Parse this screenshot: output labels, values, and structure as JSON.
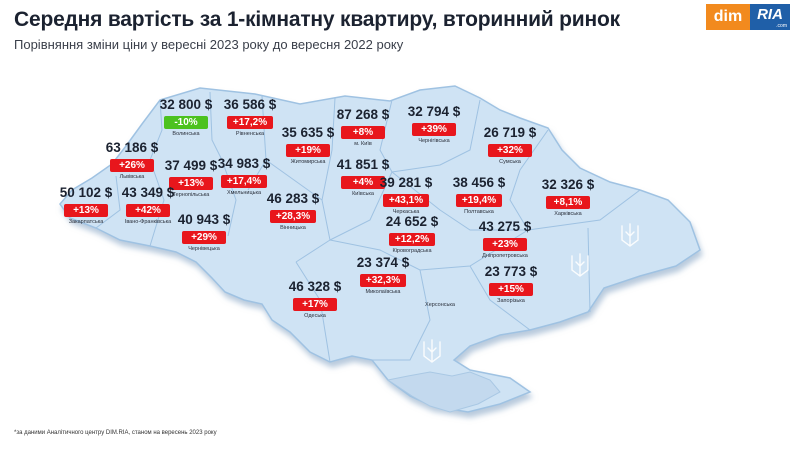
{
  "header": {
    "title": "Середня вартість за 1-кімнатну квартиру, вторинний ринок",
    "subtitle": "Порівняння зміни ціни у вересні 2023 року до вересня 2022 року"
  },
  "logo": {
    "left": "dim",
    "right": "RIA",
    "suffix": ".com"
  },
  "footnote": "*за даними Аналітичного центру DIM.RIA, станом на вересень 2023 року",
  "colors": {
    "increase": "#e8161c",
    "decrease": "#4cc21f",
    "map_fill": "#cfe3f4",
    "map_edge": "#8fb5d8"
  },
  "regions": [
    {
      "name": "Волинська",
      "price": "32 800 $",
      "change": "-10%",
      "direction": "down"
    },
    {
      "name": "Рівненська",
      "price": "36 586 $",
      "change": "+17,2%",
      "direction": "up"
    },
    {
      "name": "Житомирська",
      "price": "35 635 $",
      "change": "+19%",
      "direction": "up"
    },
    {
      "name": "м. Київ",
      "price": "87 268 $",
      "change": "+8%",
      "direction": "up"
    },
    {
      "name": "Чернігівська",
      "price": "32 794 $",
      "change": "+39%",
      "direction": "up"
    },
    {
      "name": "Сумська",
      "price": "26 719 $",
      "change": "+32%",
      "direction": "up"
    },
    {
      "name": "Львівська",
      "price": "63 186 $",
      "change": "+26%",
      "direction": "up"
    },
    {
      "name": "Тернопільська",
      "price": "37 499 $",
      "change": "+13%",
      "direction": "up"
    },
    {
      "name": "Хмельницька",
      "price": "34 983 $",
      "change": "+17,4%",
      "direction": "up"
    },
    {
      "name": "Київська",
      "price": "41 851 $",
      "change": "+4%",
      "direction": "up"
    },
    {
      "name": "Черкаська",
      "price": "39 281 $",
      "change": "+43,1%",
      "direction": "up"
    },
    {
      "name": "Полтавська",
      "price": "38 456 $",
      "change": "+19,4%",
      "direction": "up"
    },
    {
      "name": "Харківська",
      "price": "32 326 $",
      "change": "+8,1%",
      "direction": "up"
    },
    {
      "name": "Закарпатська",
      "price": "50 102 $",
      "change": "+13%",
      "direction": "up"
    },
    {
      "name": "Івано-Франківська",
      "price": "43 349 $",
      "change": "+42%",
      "direction": "up"
    },
    {
      "name": "Вінницька",
      "price": "46 283 $",
      "change": "+28,3%",
      "direction": "up"
    },
    {
      "name": "Чернівецька",
      "price": "40 943 $",
      "change": "+29%",
      "direction": "up"
    },
    {
      "name": "Кіровоградська",
      "price": "24 652 $",
      "change": "+12,2%",
      "direction": "up"
    },
    {
      "name": "Дніпропетровська",
      "price": "43 275 $",
      "change": "+23%",
      "direction": "up"
    },
    {
      "name": "Миколаївська",
      "price": "23 374 $",
      "change": "+32,3%",
      "direction": "up"
    },
    {
      "name": "Запорізька",
      "price": "23 773 $",
      "change": "+15%",
      "direction": "up"
    },
    {
      "name": "Одеська",
      "price": "46 328 $",
      "change": "+17%",
      "direction": "up"
    }
  ],
  "map_labels": {
    "kherson": "Херсонська"
  }
}
